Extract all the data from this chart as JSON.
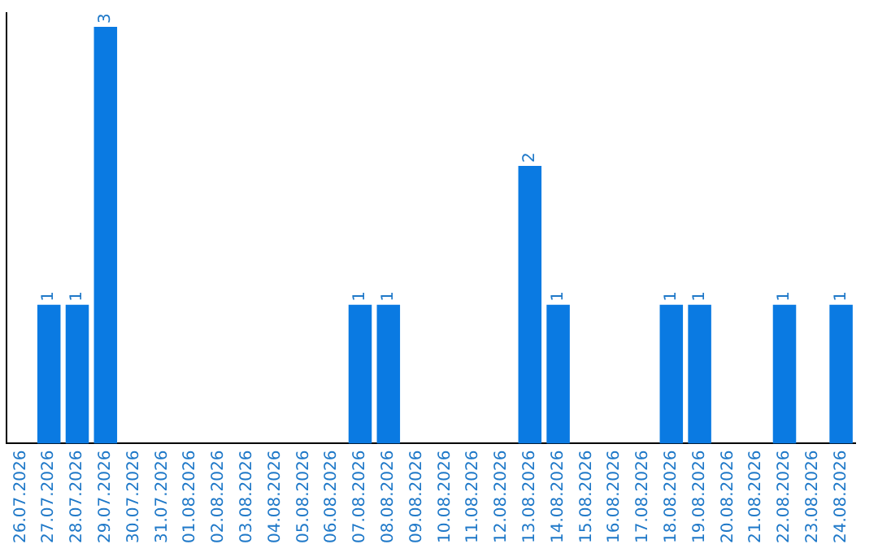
{
  "chart_data": {
    "type": "bar",
    "categories": [
      "26.07.2026",
      "27.07.2026",
      "28.07.2026",
      "29.07.2026",
      "30.07.2026",
      "31.07.2026",
      "01.08.2026",
      "02.08.2026",
      "03.08.2026",
      "04.08.2026",
      "05.08.2026",
      "06.08.2026",
      "07.08.2026",
      "08.08.2026",
      "09.08.2026",
      "10.08.2026",
      "11.08.2026",
      "12.08.2026",
      "13.08.2026",
      "14.08.2026",
      "15.08.2026",
      "16.08.2026",
      "17.08.2026",
      "18.08.2026",
      "19.08.2026",
      "20.08.2026",
      "21.08.2026",
      "22.08.2026",
      "23.08.2026",
      "24.08.2026"
    ],
    "values": [
      0,
      1,
      1,
      3,
      0,
      0,
      0,
      0,
      0,
      0,
      0,
      0,
      1,
      1,
      0,
      0,
      0,
      0,
      2,
      1,
      0,
      0,
      0,
      1,
      1,
      0,
      0,
      1,
      0,
      1
    ],
    "value_labels": [
      null,
      "1",
      "1",
      "3",
      null,
      null,
      null,
      null,
      null,
      null,
      null,
      null,
      "1",
      "1",
      null,
      null,
      null,
      null,
      "2",
      "1",
      null,
      null,
      null,
      "1",
      "1",
      null,
      null,
      "1",
      null,
      "1"
    ],
    "color": "#0a7ae2",
    "ylim": [
      0,
      3.1
    ],
    "tick_labels": "x"
  }
}
